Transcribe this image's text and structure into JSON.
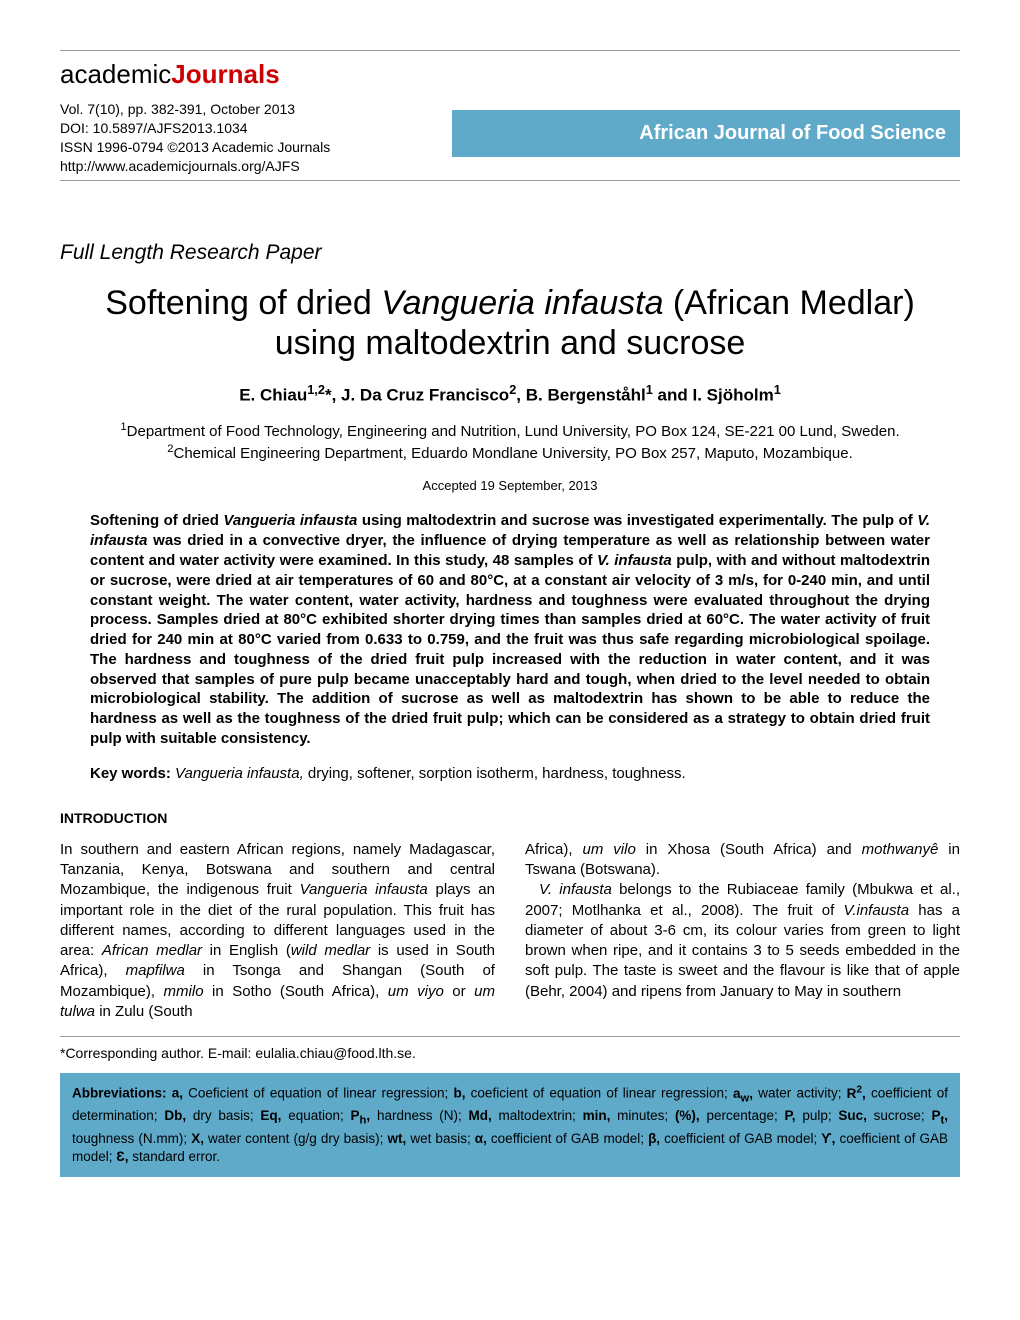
{
  "logo": {
    "part1": "academic",
    "part2": "Journals"
  },
  "pubinfo": {
    "line1": "Vol. 7(10), pp. 382-391, October 2013",
    "line2": "DOI: 10.5897/AJFS2013.1034",
    "line3": "ISSN 1996-0794 ©2013 Academic Journals",
    "line4": "http://www.academicjournals.org/AJFS"
  },
  "journal_name": "African Journal of Food Science",
  "paper_type": "Full Length Research Paper",
  "title": {
    "pre": "Softening of dried ",
    "ital": "Vangueria infausta",
    "post": " (African Medlar) using maltodextrin and sucrose"
  },
  "authors_html": "E. Chiau<sup>1,2</sup>*, J. Da Cruz Francisco<sup>2</sup>, B. Bergenståhl<sup>1</sup> and I. Sjöholm<sup>1</sup>",
  "affil": {
    "a1": "<sup>1</sup>Department of Food Technology, Engineering and Nutrition, Lund University, PO Box 124, SE-221 00 Lund, Sweden.",
    "a2": "<sup>2</sup>Chemical Engineering Department, Eduardo Mondlane University, PO Box 257, Maputo, Mozambique."
  },
  "accepted": "Accepted 19 September, 2013",
  "abstract": "Softening of dried <span class=\"ital\">Vangueria infausta</span> using maltodextrin and sucrose was investigated experimentally. The pulp of <span class=\"ital\">V. infausta</span> was dried in a convective dryer, the influence of drying temperature as well as relationship between water content and water activity were examined. In this study, 48 samples of <span class=\"ital\">V. infausta</span> pulp, with and without maltodextrin or sucrose, were dried at air temperatures of 60 and 80°C, at a constant air velocity of 3 m/s, for 0-240 min, and until constant weight. The water content, water activity, hardness and toughness were evaluated throughout the drying process. Samples dried at 80°C exhibited shorter drying times than samples dried at 60°C. The water activity of fruit dried for 240 min at 80°C varied from 0.633 to 0.759, and the fruit was thus safe regarding microbiological spoilage. The hardness and toughness of the dried fruit pulp increased with the reduction in water content, and it was observed that samples of pure pulp became unacceptably hard and tough, when dried to the level needed to obtain microbiological stability. The addition of sucrose as well as maltodextrin has shown to be able to reduce the hardness as well as the toughness of the dried fruit pulp; which can be considered as a strategy to obtain dried fruit pulp with suitable consistency.",
  "keywords": {
    "label": "Key words:",
    "ital": "Vangueria infausta,",
    "rest": " drying, softener, sorption isotherm, hardness, toughness."
  },
  "intro_heading": "INTRODUCTION",
  "intro": {
    "col1": "In southern and eastern African regions, namely Madagascar, Tanzania, Kenya, Botswana and southern and central Mozambique, the indigenous fruit <span class=\"ital\">Vangueria infausta</span> plays an important role in the diet of the rural population. This fruit has different names, according to different languages used in the area: <span class=\"ital\">African medlar</span> in English (<span class=\"ital\">wild medlar</span> is used in South Africa), <span class=\"ital\">mapfilwa</span> in Tsonga and Shangan (South of Mozambique), <span class=\"ital\">mmilo</span> in Sotho (South Africa), <span class=\"ital\">um viyo</span> or <span class=\"ital\">um tulwa</span> in Zulu (South",
    "col2_p1": "Africa), <span class=\"ital\">um vilo</span> in Xhosa (South Africa) and <span class=\"ital\">mothwanyê</span> in Tswana (Botswana).",
    "col2_p2": "<span class=\"ital\">V. infausta</span> belongs to the Rubiaceae family (Mbukwa et al., 2007; Motlhanka et al., 2008). The fruit of <span class=\"ital\">V.infausta</span> has a diameter of about 3-6 cm, its colour varies from green to light brown when ripe, and it contains 3 to 5 seeds embedded in the soft pulp. The taste is sweet and the flavour is like that of apple (Behr, 2004) and ripens from January to May in southern"
  },
  "corresponding": "*Corresponding author. E-mail: eulalia.chiau@food.lth.se.",
  "abbrev": "<span class=\"label\">Abbreviations: a,</span> Coeficient of equation of linear regression; <span class=\"label\">b,</span> coeficient of equation of linear regression; <span class=\"label\">a<sub>w</sub>,</span> water activity; <span class=\"label\">R<sup>2</sup>,</span> coefficient of determination; <span class=\"label\">Db,</span> dry basis; <span class=\"label\">Eq,</span> equation; <span class=\"label\">P<sub>h</sub>,</span> hardness (N); <span class=\"label\">Md,</span> maltodextrin; <span class=\"label\">min,</span> minutes; <span class=\"label\">(%),</span> percentage; <span class=\"label\">P,</span> pulp; <span class=\"label\">Suc,</span> sucrose; <span class=\"label\">P<sub>t</sub>,</span> toughness (N.mm); <span class=\"label\">X,</span> water content (g/g dry basis); <span class=\"label\">wt,</span> wet basis; <span class=\"label\">α,</span> coefficient of GAB model; <span class=\"label\">β,</span> coefficient of GAB model; <span class=\"label\">ϒ,</span> coefficient of GAB model; <span class=\"label\">Ɛ,</span> standard error.",
  "colors": {
    "banner_bg": "#5fa9c9",
    "banner_fg": "#ffffff",
    "logo_red": "#c00",
    "rule": "#999"
  }
}
